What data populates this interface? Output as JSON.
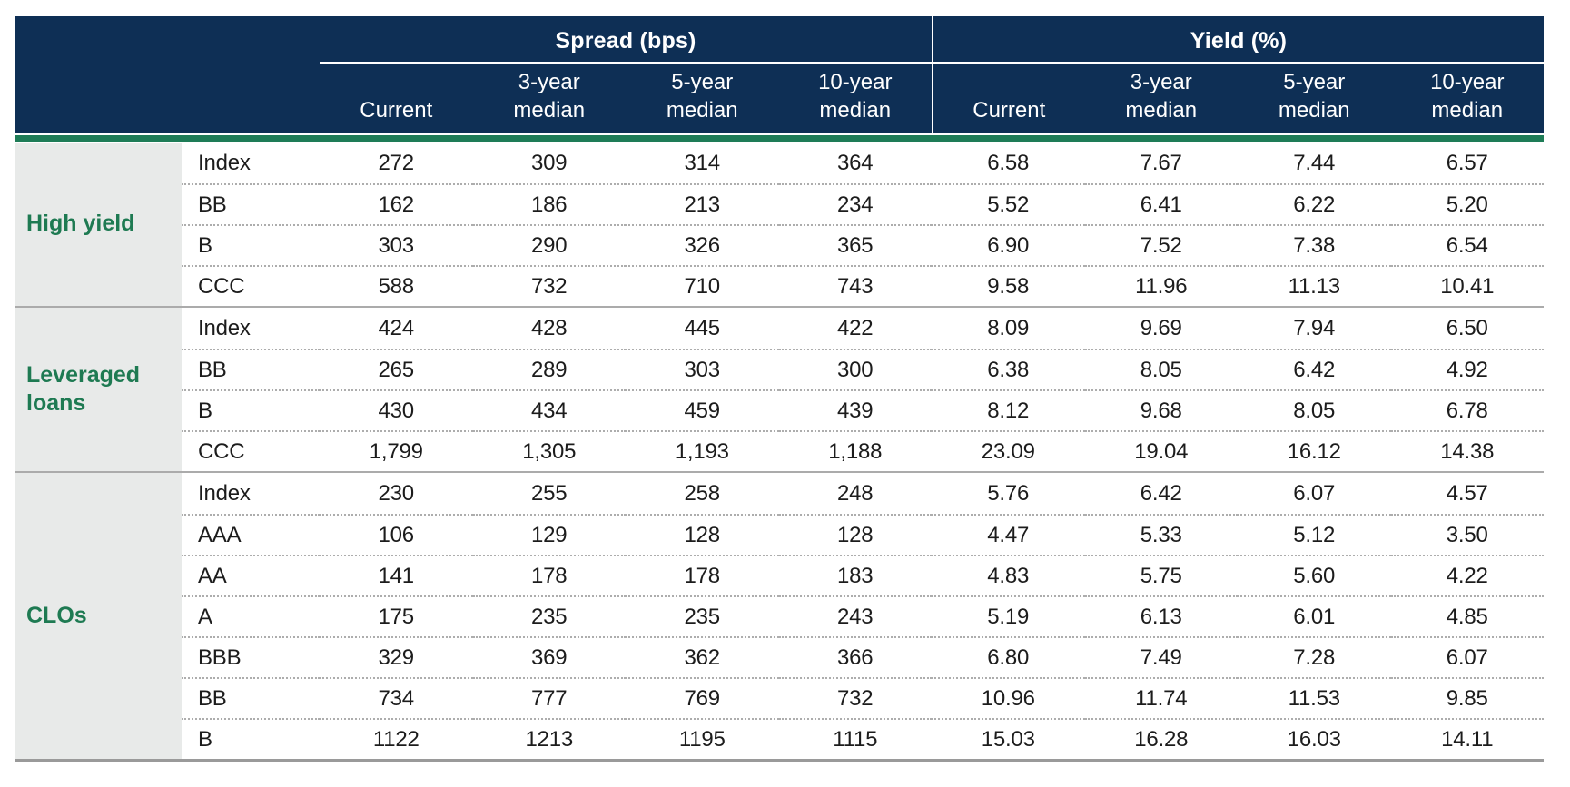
{
  "colors": {
    "header_navy": "#0E2F55",
    "accent_green_bar": "#1E7C57",
    "group_label_green": "#1E7A52",
    "group_column_gray": "#E8EAE9",
    "value_text": "#1C1C1C",
    "header_text": "#FFFFFF"
  },
  "chart_data": {
    "type": "table",
    "column_groups": [
      {
        "label": "Spread (bps)",
        "span": 4
      },
      {
        "label": "Yield (%)",
        "span": 4
      }
    ],
    "columns": [
      "Current",
      "3-year median",
      "5-year median",
      "10-year median",
      "Current",
      "3-year median",
      "5-year median",
      "10-year median"
    ],
    "row_groups": [
      {
        "label": "High yield",
        "rows": [
          {
            "label": "Index",
            "values": [
              "272",
              "309",
              "314",
              "364",
              "6.58",
              "7.67",
              "7.44",
              "6.57"
            ]
          },
          {
            "label": "BB",
            "values": [
              "162",
              "186",
              "213",
              "234",
              "5.52",
              "6.41",
              "6.22",
              "5.20"
            ]
          },
          {
            "label": "B",
            "values": [
              "303",
              "290",
              "326",
              "365",
              "6.90",
              "7.52",
              "7.38",
              "6.54"
            ]
          },
          {
            "label": "CCC",
            "values": [
              "588",
              "732",
              "710",
              "743",
              "9.58",
              "11.96",
              "11.13",
              "10.41"
            ]
          }
        ]
      },
      {
        "label": "Leveraged loans",
        "rows": [
          {
            "label": "Index",
            "values": [
              "424",
              "428",
              "445",
              "422",
              "8.09",
              "9.69",
              "7.94",
              "6.50"
            ]
          },
          {
            "label": "BB",
            "values": [
              "265",
              "289",
              "303",
              "300",
              "6.38",
              "8.05",
              "6.42",
              "4.92"
            ]
          },
          {
            "label": "B",
            "values": [
              "430",
              "434",
              "459",
              "439",
              "8.12",
              "9.68",
              "8.05",
              "6.78"
            ]
          },
          {
            "label": "CCC",
            "values": [
              "1,799",
              "1,305",
              "1,193",
              "1,188",
              "23.09",
              "19.04",
              "16.12",
              "14.38"
            ]
          }
        ]
      },
      {
        "label": "CLOs",
        "rows": [
          {
            "label": "Index",
            "values": [
              "230",
              "255",
              "258",
              "248",
              "5.76",
              "6.42",
              "6.07",
              "4.57"
            ]
          },
          {
            "label": "AAA",
            "values": [
              "106",
              "129",
              "128",
              "128",
              "4.47",
              "5.33",
              "5.12",
              "3.50"
            ]
          },
          {
            "label": "AA",
            "values": [
              "141",
              "178",
              "178",
              "183",
              "4.83",
              "5.75",
              "5.60",
              "4.22"
            ]
          },
          {
            "label": "A",
            "values": [
              "175",
              "235",
              "235",
              "243",
              "5.19",
              "6.13",
              "6.01",
              "4.85"
            ]
          },
          {
            "label": "BBB",
            "values": [
              "329",
              "369",
              "362",
              "366",
              "6.80",
              "7.49",
              "7.28",
              "6.07"
            ]
          },
          {
            "label": "BB",
            "values": [
              "734",
              "777",
              "769",
              "732",
              "10.96",
              "11.74",
              "11.53",
              "9.85"
            ]
          },
          {
            "label": "B",
            "values": [
              "1122",
              "1213",
              "1195",
              "1115",
              "15.03",
              "16.28",
              "16.03",
              "14.11"
            ]
          }
        ]
      }
    ]
  }
}
